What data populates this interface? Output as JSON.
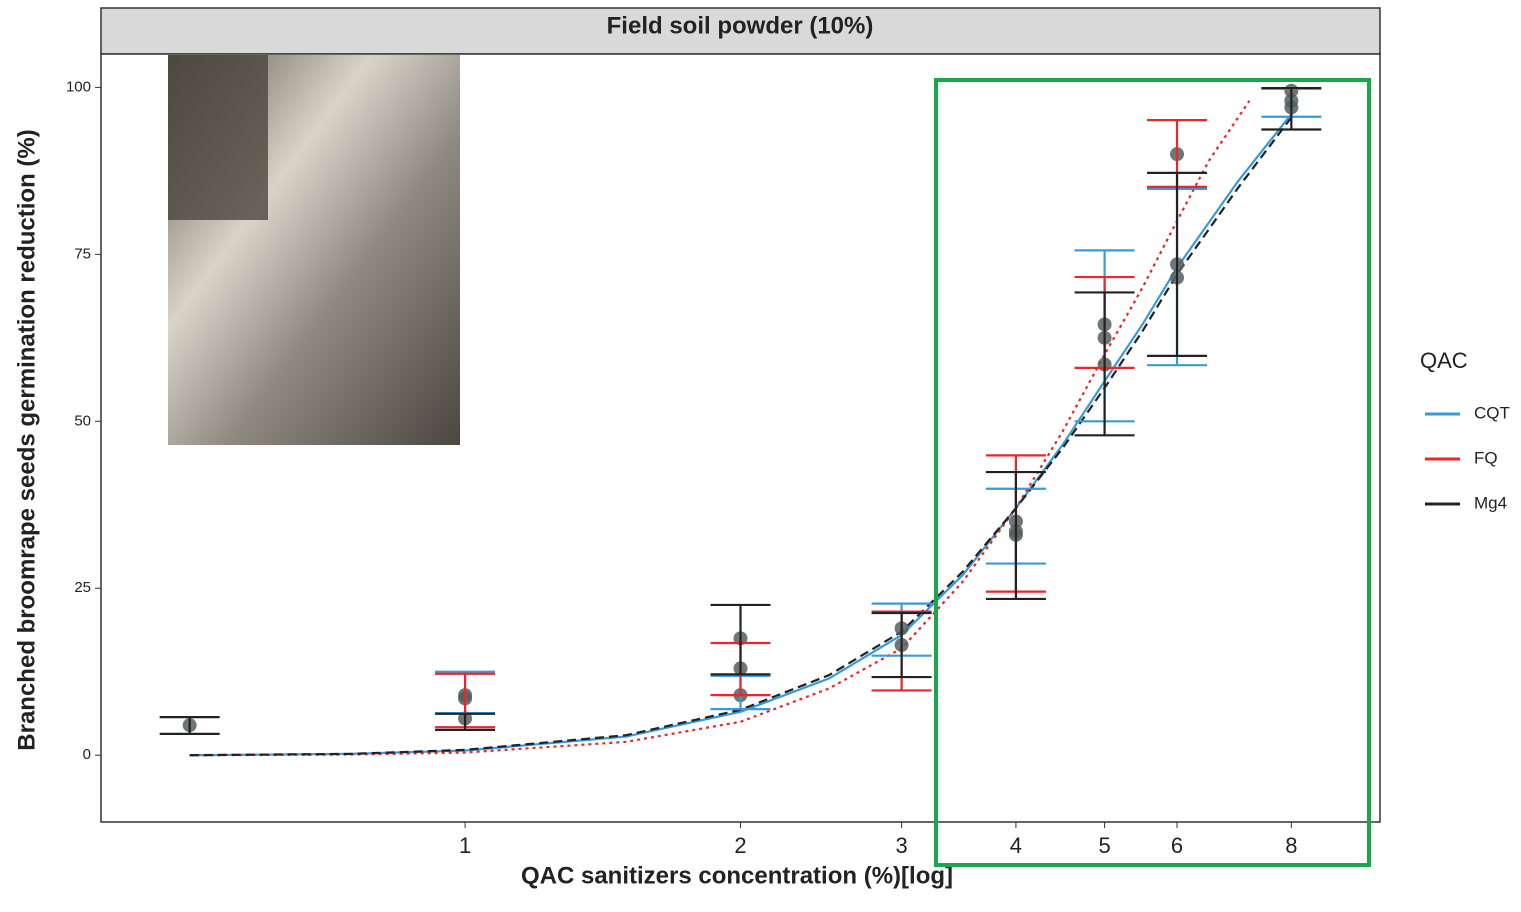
{
  "chart_data": {
    "type": "dose-response",
    "title": "Field soil powder (10%)",
    "x_label": "QAC sanitizers concentration (%)[log]",
    "y_label": "Branched broomrape seeds germination reduction  (%)",
    "legend_title": "QAC",
    "legend": "right",
    "x_log": true,
    "xlim": [
      0.4,
      10
    ],
    "xticks": [
      1,
      2,
      3,
      4,
      5,
      6,
      8
    ],
    "ylim": [
      -10,
      105
    ],
    "yticks": [
      0,
      25,
      50,
      75,
      100
    ],
    "points": {
      "color": "#555e5e",
      "x": [
        0.5,
        1,
        1,
        1,
        2,
        2,
        2,
        3,
        3,
        4,
        4,
        4,
        5,
        5,
        5,
        6,
        6,
        6,
        8,
        8,
        8
      ],
      "y": [
        4.5,
        9,
        8.5,
        5.5,
        17.5,
        13,
        9,
        19,
        16.5,
        35,
        33.5,
        33,
        64.5,
        62.5,
        58.5,
        90,
        73.5,
        71.5,
        99.5,
        98,
        97
      ]
    },
    "series": [
      {
        "name": "CQT",
        "color": "#3a9ad9",
        "linestyle": "solid",
        "x": [
          0.5,
          1,
          2,
          3,
          4,
          5,
          6,
          8
        ],
        "values": [
          null,
          9.4,
          9.4,
          18.8,
          34.3,
          62.8,
          71.6,
          97.7
        ],
        "errors": [
          null,
          3.1,
          2.5,
          3.9,
          5.6,
          12.8,
          13.2,
          2.1
        ],
        "curve_x": [
          0.5,
          0.75,
          1,
          1.5,
          2,
          2.5,
          3,
          3.5,
          4,
          4.5,
          5,
          5.5,
          6,
          7,
          8
        ],
        "curve_y": [
          0,
          0.2,
          0.7,
          2.8,
          6.5,
          11.5,
          18,
          27,
          37,
          46.5,
          56,
          64.5,
          73,
          86,
          96
        ]
      },
      {
        "name": "FQ",
        "color": "#e8262b",
        "linestyle": "dotted",
        "x": [
          0.5,
          1,
          2,
          3,
          4,
          5,
          6,
          8
        ],
        "values": [
          null,
          8.2,
          12.9,
          15.6,
          34.7,
          64.8,
          90.1,
          null
        ],
        "errors": [
          null,
          4,
          3.9,
          5.9,
          10.2,
          6.8,
          5,
          null
        ],
        "curve_x": [
          0.5,
          0.75,
          1,
          1.5,
          2,
          2.5,
          3,
          3.5,
          4,
          4.5,
          5,
          5.5,
          6,
          6.5,
          7.2
        ],
        "curve_y": [
          0,
          0.1,
          0.4,
          2,
          5,
          10,
          16,
          26,
          37,
          48.5,
          60,
          70,
          80,
          89,
          98
        ]
      },
      {
        "name": "Mg4",
        "color": "#222222",
        "linestyle": "dashed",
        "x": [
          0.5,
          1,
          2,
          3,
          4,
          5,
          6,
          8
        ],
        "values": [
          4.45,
          5,
          17.3,
          16.5,
          32.9,
          58.6,
          73.5,
          96.8
        ],
        "errors": [
          1.25,
          1.2,
          5.2,
          4.8,
          9.5,
          10.7,
          13.7,
          3.1
        ],
        "curve_x": [
          0.5,
          0.75,
          1,
          1.5,
          2,
          2.5,
          3,
          3.5,
          4,
          4.5,
          5,
          5.5,
          6,
          7,
          8
        ],
        "curve_y": [
          0,
          0.2,
          0.8,
          3,
          6.8,
          12,
          18.5,
          27.5,
          37,
          46,
          55,
          63.5,
          72,
          85,
          95.5
        ]
      }
    ]
  }
}
